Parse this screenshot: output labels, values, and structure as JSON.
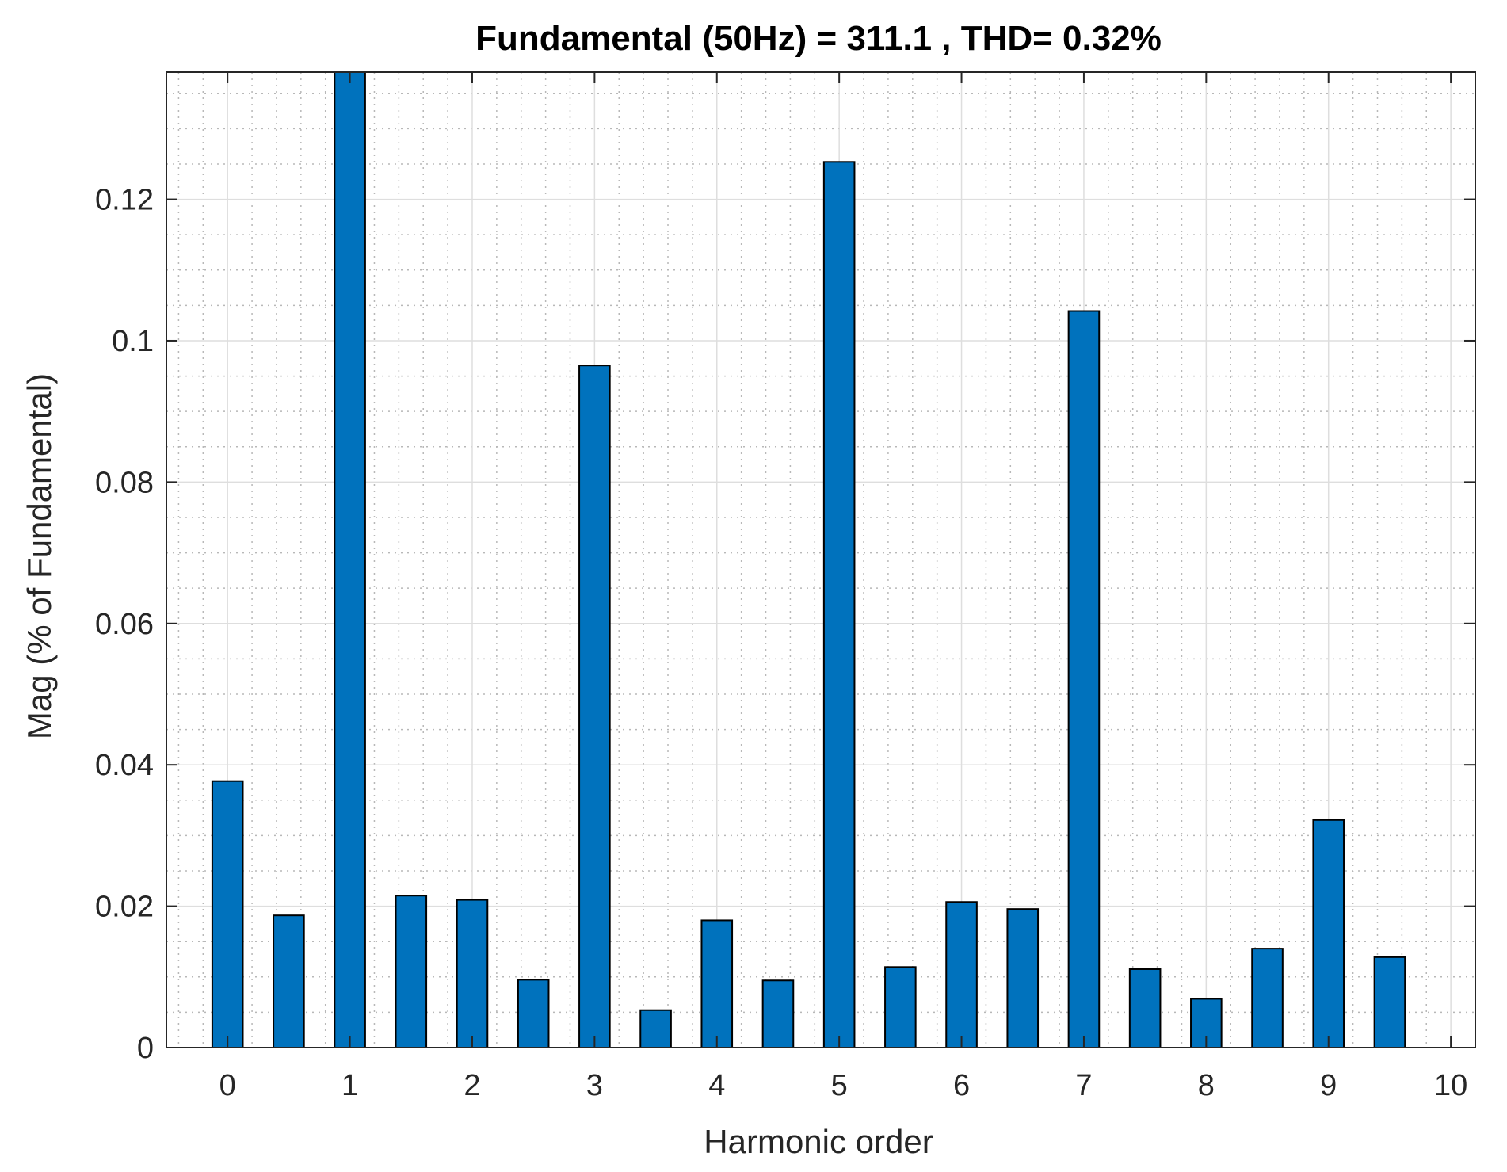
{
  "chart_data": {
    "type": "bar",
    "title": "Fundamental (50Hz) = 311.1 , THD= 0.32%",
    "xlabel": "Harmonic order",
    "ylabel": "Mag (% of Fundamental)",
    "xlim": [
      -0.5,
      10.2
    ],
    "ylim": [
      0,
      0.138
    ],
    "xticks": [
      0,
      1,
      2,
      3,
      4,
      5,
      6,
      7,
      8,
      9,
      10
    ],
    "xtick_labels": [
      "0",
      "1",
      "2",
      "3",
      "4",
      "5",
      "6",
      "7",
      "8",
      "9",
      "10"
    ],
    "yticks": [
      0,
      0.02,
      0.04,
      0.06,
      0.08,
      0.1,
      0.12
    ],
    "ytick_labels": [
      "0",
      "0.02",
      "0.04",
      "0.06",
      "0.08",
      "0.1",
      "0.12"
    ],
    "grid": true,
    "minor_grid": true,
    "bar_color": "#0072BD",
    "x": [
      0,
      0.5,
      1,
      1.5,
      2,
      2.5,
      3,
      3.5,
      4,
      4.5,
      5,
      5.5,
      6,
      6.5,
      7,
      7.5,
      8,
      8.5,
      9,
      9.5
    ],
    "values": [
      0.0377,
      0.0187,
      0.138,
      0.0215,
      0.0209,
      0.0096,
      0.0965,
      0.0053,
      0.018,
      0.0095,
      0.1253,
      0.0114,
      0.0206,
      0.0196,
      0.1042,
      0.0111,
      0.0069,
      0.014,
      0.0322,
      0.0128
    ]
  }
}
